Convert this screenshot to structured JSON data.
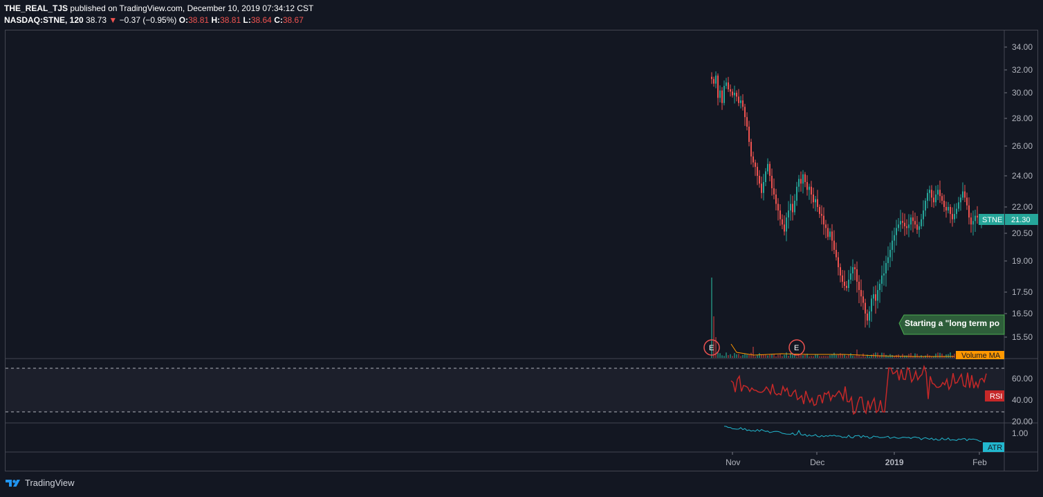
{
  "header": {
    "line1_user": "THE_REAL_TJS",
    "line1_rest": " published on TradingView.com, December 10, 2019 07:34:12 CST",
    "symbol": "NASDAQ:STNE, 120",
    "last": "38.73",
    "arrow": "▼",
    "change": "−0.37 (−0.95%)",
    "o_label": "O:",
    "o": "38.81",
    "h_label": "H:",
    "h": "38.81",
    "l_label": "L:",
    "l": "38.64",
    "c_label": "C:",
    "c": "38.67"
  },
  "colors": {
    "bg": "#131722",
    "up": "#26a69a",
    "down": "#ef5350",
    "rsi": "#c62828",
    "atr": "#22b8cf",
    "volma": "#ff9800"
  },
  "price_axis": [
    "34.00",
    "32.00",
    "30.00",
    "28.00",
    "26.00",
    "24.00",
    "22.00",
    "20.50",
    "19.00",
    "17.50",
    "16.50",
    "15.50"
  ],
  "price_tag": {
    "symbol": "STNE",
    "value": "21.30"
  },
  "annotation": "Starting a \"long term po",
  "earnings_markers": [
    "E",
    "E"
  ],
  "volume_label": "Volume MA",
  "rsi_axis": [
    "60.00",
    "40.00",
    "20.00"
  ],
  "rsi_label": "RSI",
  "atr_axis": [
    "1.00"
  ],
  "atr_label": "ATR",
  "time_axis": [
    "Nov",
    "Dec",
    "2019",
    "Feb"
  ],
  "brand": "TradingView",
  "chart_data": {
    "type": "candlestick",
    "symbol": "NASDAQ:STNE",
    "interval": "120",
    "price_path": [
      [
        0,
        31.2
      ],
      [
        3,
        30.8
      ],
      [
        6,
        31.5
      ],
      [
        9,
        29.6
      ],
      [
        12,
        30.2
      ],
      [
        15,
        29.2
      ],
      [
        18,
        30.6
      ],
      [
        21,
        30.9
      ],
      [
        24,
        30.3
      ],
      [
        27,
        30.1
      ],
      [
        30,
        29.8
      ],
      [
        33,
        30.0
      ],
      [
        36,
        29.7
      ],
      [
        39,
        29.2
      ],
      [
        42,
        29.4
      ],
      [
        45,
        28.9
      ],
      [
        48,
        28.1
      ],
      [
        51,
        27.4
      ],
      [
        54,
        26.3
      ],
      [
        57,
        25.3
      ],
      [
        60,
        24.9
      ],
      [
        63,
        24.6
      ],
      [
        66,
        24.0
      ],
      [
        69,
        23.5
      ],
      [
        72,
        22.9
      ],
      [
        75,
        23.6
      ],
      [
        78,
        24.3
      ],
      [
        81,
        24.8
      ],
      [
        84,
        24.0
      ],
      [
        87,
        23.2
      ],
      [
        90,
        22.8
      ],
      [
        93,
        22.2
      ],
      [
        96,
        21.8
      ],
      [
        99,
        21.3
      ],
      [
        102,
        21.0
      ],
      [
        105,
        20.6
      ],
      [
        108,
        21.4
      ],
      [
        111,
        21.8
      ],
      [
        114,
        22.2
      ],
      [
        117,
        21.7
      ],
      [
        120,
        22.4
      ],
      [
        123,
        23.3
      ],
      [
        126,
        23.8
      ],
      [
        129,
        23.5
      ],
      [
        132,
        24.1
      ],
      [
        135,
        23.6
      ],
      [
        138,
        23.1
      ],
      [
        141,
        23.3
      ],
      [
        144,
        22.8
      ],
      [
        147,
        22.3
      ],
      [
        150,
        22.5
      ],
      [
        153,
        22.0
      ],
      [
        156,
        21.6
      ],
      [
        159,
        21.5
      ],
      [
        162,
        21.0
      ],
      [
        165,
        20.8
      ],
      [
        168,
        20.3
      ],
      [
        171,
        20.6
      ],
      [
        174,
        20.1
      ],
      [
        177,
        19.6
      ],
      [
        180,
        19.2
      ],
      [
        183,
        18.7
      ],
      [
        186,
        18.3
      ],
      [
        189,
        18.0
      ],
      [
        192,
        17.8
      ],
      [
        195,
        17.7
      ],
      [
        198,
        18.1
      ],
      [
        201,
        18.4
      ],
      [
        204,
        18.7
      ],
      [
        207,
        18.6
      ],
      [
        210,
        18.0
      ],
      [
        213,
        17.6
      ],
      [
        216,
        17.3
      ],
      [
        219,
        17.0
      ],
      [
        222,
        16.5
      ],
      [
        225,
        16.2
      ],
      [
        228,
        16.6
      ],
      [
        231,
        17.2
      ],
      [
        234,
        17.4
      ],
      [
        237,
        17.1
      ],
      [
        240,
        17.6
      ],
      [
        243,
        17.9
      ],
      [
        246,
        18.3
      ],
      [
        249,
        18.4
      ],
      [
        252,
        18.9
      ],
      [
        255,
        19.2
      ],
      [
        258,
        19.6
      ],
      [
        261,
        20.1
      ],
      [
        264,
        20.4
      ],
      [
        267,
        20.8
      ],
      [
        270,
        21.0
      ],
      [
        273,
        21.2
      ],
      [
        276,
        21.1
      ],
      [
        279,
        20.9
      ],
      [
        282,
        20.8
      ],
      [
        285,
        21.0
      ],
      [
        288,
        21.4
      ],
      [
        291,
        21.2
      ],
      [
        294,
        21.0
      ],
      [
        297,
        20.7
      ],
      [
        300,
        20.9
      ],
      [
        303,
        21.3
      ],
      [
        306,
        21.8
      ],
      [
        309,
        22.4
      ],
      [
        312,
        22.9
      ],
      [
        315,
        23.1
      ],
      [
        318,
        22.6
      ],
      [
        321,
        22.3
      ],
      [
        324,
        22.8
      ],
      [
        327,
        23.1
      ],
      [
        330,
        22.7
      ],
      [
        333,
        22.4
      ],
      [
        336,
        22.0
      ],
      [
        339,
        21.8
      ],
      [
        342,
        22.0
      ],
      [
        345,
        21.6
      ],
      [
        348,
        21.3
      ],
      [
        351,
        21.6
      ],
      [
        354,
        21.9
      ],
      [
        357,
        22.3
      ],
      [
        360,
        22.6
      ],
      [
        363,
        23.0
      ],
      [
        366,
        22.6
      ],
      [
        369,
        22.1
      ],
      [
        372,
        21.4
      ],
      [
        375,
        21.0
      ],
      [
        378,
        21.2
      ],
      [
        381,
        21.5
      ],
      [
        384,
        21.4
      ],
      [
        387,
        21.3
      ],
      [
        390,
        21.3
      ]
    ],
    "candle_spacing": 3,
    "rsi_levels": [
      70,
      30
    ]
  }
}
